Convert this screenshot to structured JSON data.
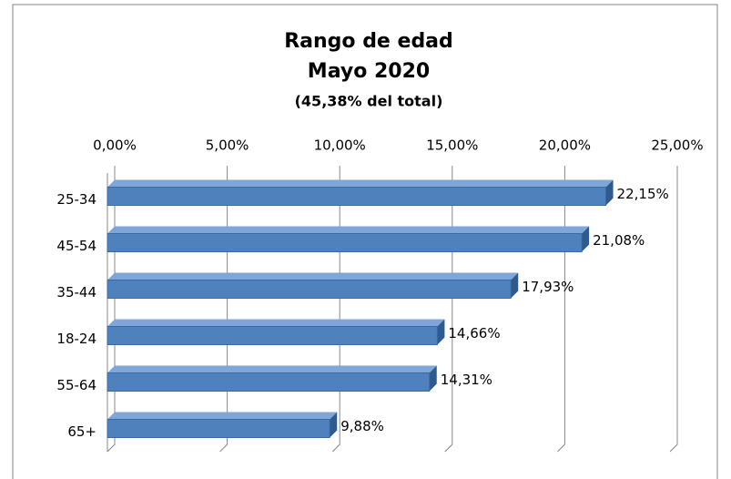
{
  "chart_data": {
    "type": "bar",
    "orientation": "horizontal",
    "title": "Rango de edad",
    "subtitle": "Mayo 2020",
    "annotation": "(45,38% del total)",
    "categories": [
      "25-34",
      "45-54",
      "35-44",
      "18-24",
      "55-64",
      "65+"
    ],
    "values": [
      22.15,
      21.08,
      17.93,
      14.66,
      14.31,
      9.88
    ],
    "value_labels": [
      "22,15%",
      "21,08%",
      "17,93%",
      "14,66%",
      "14,31%",
      "9,88%"
    ],
    "color": "#4f81bd",
    "xlim": [
      0,
      25
    ],
    "xticks": [
      {
        "value": 0,
        "label": "0,00%"
      },
      {
        "value": 5,
        "label": "5,00%"
      },
      {
        "value": 10,
        "label": "10,00%"
      },
      {
        "value": 15,
        "label": "15,00%"
      },
      {
        "value": 20,
        "label": "20,00%"
      },
      {
        "value": 25,
        "label": "25,00%"
      }
    ],
    "grid": true
  }
}
